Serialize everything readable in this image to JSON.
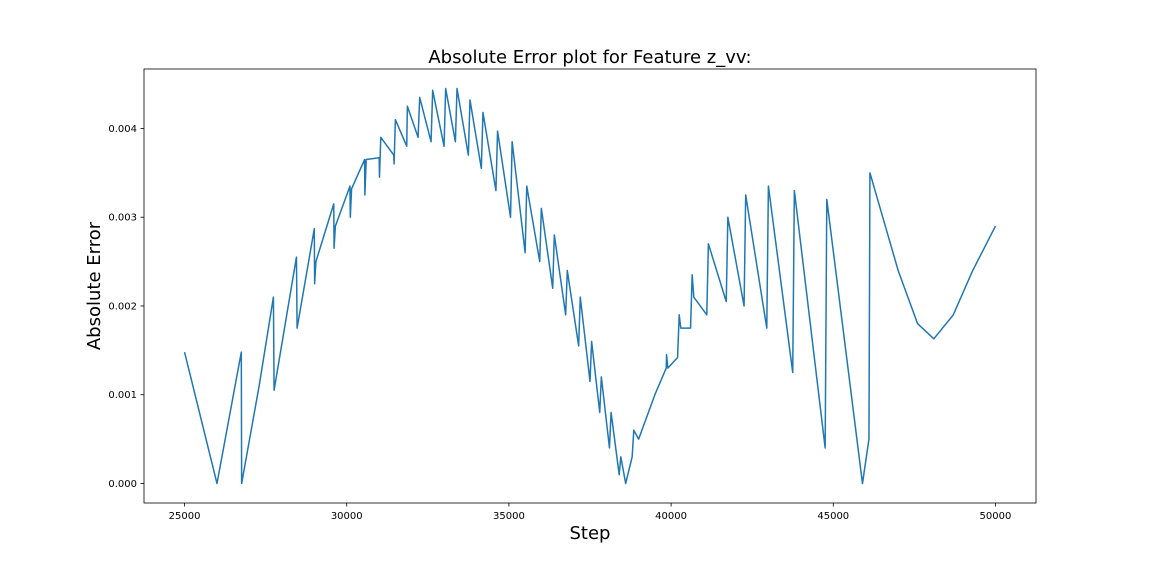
{
  "chart_data": {
    "type": "line",
    "title": "Absolute Error plot for Feature z_vv:",
    "xlabel": "Step",
    "ylabel": "Absolute Error",
    "color": "#1f77b4",
    "x": [
      25000,
      26000,
      26750,
      26760,
      27300,
      27740,
      27760,
      28450,
      28470,
      29000,
      29010,
      29050,
      29600,
      29610,
      29650,
      30100,
      30110,
      30150,
      30550,
      30560,
      30600,
      31000,
      31010,
      31050,
      31450,
      31460,
      31500,
      31850,
      31870,
      32200,
      32250,
      32600,
      32650,
      33000,
      33050,
      33350,
      33400,
      33750,
      33800,
      34150,
      34200,
      34600,
      34650,
      35050,
      35100,
      35500,
      35550,
      35950,
      36000,
      36350,
      36400,
      36750,
      36800,
      37150,
      37200,
      37500,
      37550,
      37800,
      37850,
      38100,
      38150,
      38400,
      38450,
      38600,
      38800,
      38850,
      39000,
      39500,
      39850,
      39860,
      39900,
      40200,
      40250,
      40300,
      40600,
      40650,
      40700,
      41100,
      41150,
      41700,
      41750,
      42250,
      42300,
      42950,
      43000,
      43750,
      43800,
      44750,
      44800,
      45900,
      46100,
      46130,
      47000,
      47600,
      48100,
      48700,
      49300,
      50000
    ],
    "values": [
      0.00148,
      0,
      0.00148,
      0,
      0.0011,
      0.0021,
      0.00105,
      0.00255,
      0.00175,
      0.00287,
      0.00225,
      0.0025,
      0.00315,
      0.00265,
      0.0029,
      0.00335,
      0.003,
      0.00332,
      0.00365,
      0.00325,
      0.00365,
      0.00367,
      0.00345,
      0.0039,
      0.0037,
      0.0036,
      0.0041,
      0.0038,
      0.00425,
      0.0039,
      0.00435,
      0.00385,
      0.00443,
      0.0038,
      0.00445,
      0.00385,
      0.00445,
      0.0037,
      0.00432,
      0.00355,
      0.00418,
      0.0033,
      0.00397,
      0.003,
      0.00385,
      0.0026,
      0.00335,
      0.0025,
      0.0031,
      0.0022,
      0.0028,
      0.0019,
      0.0024,
      0.00155,
      0.0021,
      0.00115,
      0.0016,
      0.0008,
      0.0012,
      0.0004,
      0.0008,
      0.0001,
      0.0003,
      0,
      0.0003,
      0.0006,
      0.0005,
      0.001,
      0.0013,
      0.00145,
      0.0013,
      0.00142,
      0.0019,
      0.00175,
      0.00175,
      0.00235,
      0.0021,
      0.0019,
      0.0027,
      0.00205,
      0.003,
      0.002,
      0.00325,
      0.00175,
      0.00335,
      0.00125,
      0.0033,
      0.0004,
      0.0032,
      0,
      0.0005,
      0.0035,
      0.0024,
      0.0018,
      0.00163,
      0.0019,
      0.0024,
      0.0029
    ],
    "xlim": [
      23750,
      51250
    ],
    "ylim": [
      -0.00022,
      0.00467
    ],
    "xticks": [
      25000,
      30000,
      35000,
      40000,
      45000,
      50000
    ],
    "yticks": [
      {
        "value": 0,
        "label": "0.000"
      },
      0.001,
      0.002,
      0.003,
      0.004
    ]
  }
}
